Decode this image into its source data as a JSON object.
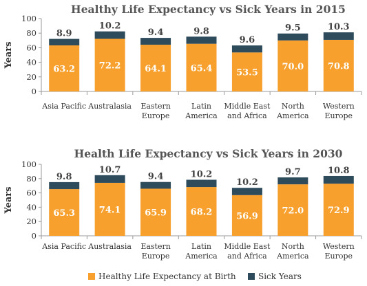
{
  "chart_data": [
    {
      "type": "bar",
      "stacked": true,
      "title": "Healthy Life Expectancy vs Sick Years in 2015",
      "ylabel": "Years",
      "ylim": [
        0,
        100
      ],
      "yticks": [
        "0",
        "20",
        "40",
        "60",
        "80",
        "100"
      ],
      "categories": [
        [
          "Asia Pacific"
        ],
        [
          "Australasia"
        ],
        [
          "Eastern",
          "Europe"
        ],
        [
          "Latin",
          "America"
        ],
        [
          "Middle East",
          "and Africa"
        ],
        [
          "North",
          "America"
        ],
        [
          "Western",
          "Europe"
        ]
      ],
      "series": [
        {
          "name": "Healthy Life Expectancy at Birth",
          "color": "#F7A02D",
          "values": [
            63.2,
            72.2,
            64.1,
            65.4,
            53.5,
            70.0,
            70.8
          ],
          "labels": [
            "63.2",
            "72.2",
            "64.1",
            "65.4",
            "53.5",
            "70.0",
            "70.8"
          ]
        },
        {
          "name": "Sick Years",
          "color": "#2E4B5C",
          "values": [
            8.9,
            10.2,
            9.4,
            9.8,
            9.6,
            9.5,
            10.3
          ],
          "labels": [
            "8.9",
            "10.2",
            "9.4",
            "9.8",
            "9.6",
            "9.5",
            "10.3"
          ]
        }
      ]
    },
    {
      "type": "bar",
      "stacked": true,
      "title": "Health Life Expectancy vs Sick Years in 2030",
      "ylabel": "Years",
      "ylim": [
        0,
        100
      ],
      "yticks": [
        "0",
        "20",
        "40",
        "60",
        "80",
        "100"
      ],
      "categories": [
        [
          "Asia Pacific"
        ],
        [
          "Australasia"
        ],
        [
          "Eastern",
          "Europe"
        ],
        [
          "Latin",
          "America"
        ],
        [
          "Middle East",
          "and Africa"
        ],
        [
          "North",
          "America"
        ],
        [
          "Western",
          "Europe"
        ]
      ],
      "series": [
        {
          "name": "Healthy Life Expectancy at Birth",
          "color": "#F7A02D",
          "values": [
            65.3,
            74.1,
            65.9,
            68.2,
            56.9,
            72.0,
            72.9
          ],
          "labels": [
            "65.3",
            "74.1",
            "65.9",
            "68.2",
            "56.9",
            "72.0",
            "72.9"
          ]
        },
        {
          "name": "Sick Years",
          "color": "#2E4B5C",
          "values": [
            9.8,
            10.7,
            9.4,
            10.2,
            10.2,
            9.7,
            10.8
          ],
          "labels": [
            "9.8",
            "10.7",
            "9.4",
            "10.2",
            "10.2",
            "9.7",
            "10.8"
          ]
        }
      ]
    }
  ],
  "legend": {
    "position": "bottom",
    "items": [
      {
        "label": "Healthy Life Expectancy at Birth",
        "color": "#F7A02D"
      },
      {
        "label": "Sick Years",
        "color": "#2E4B5C"
      }
    ]
  }
}
